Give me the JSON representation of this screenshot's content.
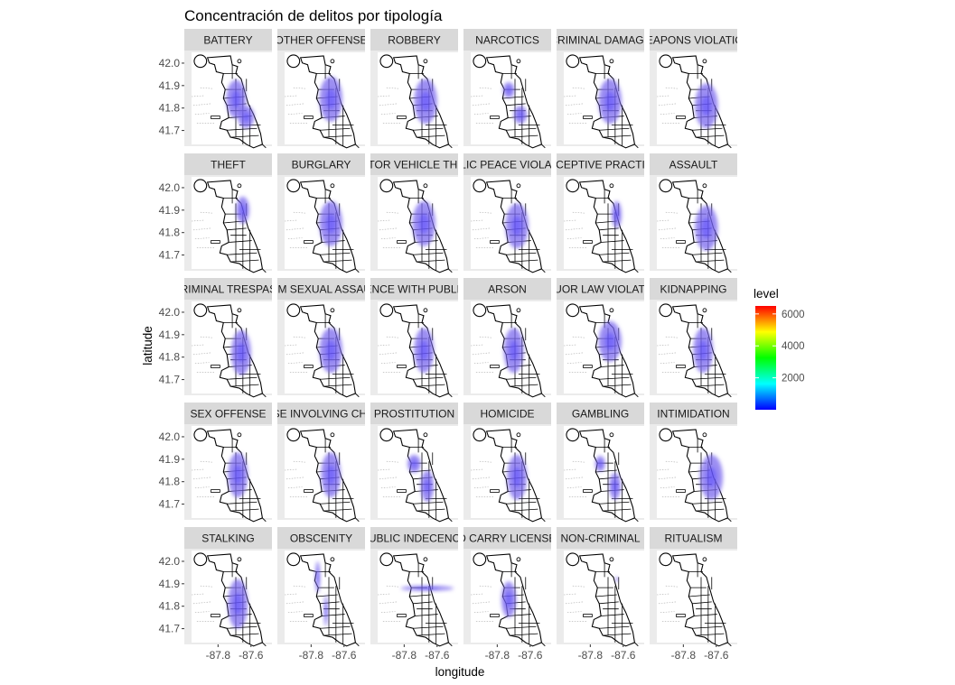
{
  "chart_data": {
    "type": "heatmap",
    "title": "Concentración de delitos por tipología",
    "xlabel": "longitude",
    "ylabel": "latitude",
    "x_ticks": [
      "-87.8",
      "-87.6"
    ],
    "y_ticks": [
      "42.0",
      "41.9",
      "41.8",
      "41.7"
    ],
    "xlim": [
      -87.95,
      -87.5
    ],
    "ylim": [
      41.63,
      42.04
    ],
    "facets": [
      {
        "label": "BATTERY",
        "blobs": [
          {
            "lon": -87.69,
            "lat": 41.84,
            "rx": 0.06,
            "ry": 0.085
          },
          {
            "lon": -87.63,
            "lat": 41.76,
            "rx": 0.05,
            "ry": 0.05
          }
        ]
      },
      {
        "label": "OTHER OFFENSE",
        "blobs": [
          {
            "lon": -87.68,
            "lat": 41.84,
            "rx": 0.07,
            "ry": 0.1
          }
        ]
      },
      {
        "label": "ROBBERY",
        "blobs": [
          {
            "lon": -87.67,
            "lat": 41.83,
            "rx": 0.07,
            "ry": 0.1
          }
        ]
      },
      {
        "label": "NARCOTICS",
        "blobs": [
          {
            "lon": -87.73,
            "lat": 41.88,
            "rx": 0.035,
            "ry": 0.035
          },
          {
            "lon": -87.66,
            "lat": 41.77,
            "rx": 0.04,
            "ry": 0.04
          }
        ]
      },
      {
        "label": "CRIMINAL DAMAGE",
        "blobs": [
          {
            "lon": -87.68,
            "lat": 41.83,
            "rx": 0.07,
            "ry": 0.1
          }
        ]
      },
      {
        "label": "WEAPONS VIOLATION",
        "blobs": [
          {
            "lon": -87.66,
            "lat": 41.81,
            "rx": 0.07,
            "ry": 0.1
          }
        ]
      },
      {
        "label": "THEFT",
        "blobs": [
          {
            "lon": -87.65,
            "lat": 41.9,
            "rx": 0.04,
            "ry": 0.06
          }
        ]
      },
      {
        "label": "BURGLARY",
        "blobs": [
          {
            "lon": -87.68,
            "lat": 41.84,
            "rx": 0.07,
            "ry": 0.1
          }
        ]
      },
      {
        "label": "MOTOR VEHICLE THEFT",
        "blobs": [
          {
            "lon": -87.68,
            "lat": 41.84,
            "rx": 0.07,
            "ry": 0.1
          }
        ]
      },
      {
        "label": "PUBLIC PEACE VIOLATION",
        "blobs": [
          {
            "lon": -87.68,
            "lat": 41.83,
            "rx": 0.07,
            "ry": 0.1
          }
        ]
      },
      {
        "label": "DECEPTIVE PRACTICE",
        "blobs": [
          {
            "lon": -87.64,
            "lat": 41.88,
            "rx": 0.03,
            "ry": 0.06
          }
        ]
      },
      {
        "label": "ASSAULT",
        "blobs": [
          {
            "lon": -87.66,
            "lat": 41.82,
            "rx": 0.07,
            "ry": 0.1
          }
        ]
      },
      {
        "label": "CRIMINAL TRESPASS",
        "blobs": [
          {
            "lon": -87.66,
            "lat": 41.82,
            "rx": 0.06,
            "ry": 0.1
          }
        ]
      },
      {
        "label": "CRIM SEXUAL ASSAULT",
        "blobs": [
          {
            "lon": -87.68,
            "lat": 41.83,
            "rx": 0.07,
            "ry": 0.1
          }
        ]
      },
      {
        "label": "INTERFERENCE WITH PUBLIC OFFICER",
        "blobs": [
          {
            "lon": -87.68,
            "lat": 41.83,
            "rx": 0.06,
            "ry": 0.1
          }
        ]
      },
      {
        "label": "ARSON",
        "blobs": [
          {
            "lon": -87.7,
            "lat": 41.83,
            "rx": 0.06,
            "ry": 0.1
          }
        ]
      },
      {
        "label": "LIQUOR LAW VIOLATION",
        "blobs": [
          {
            "lon": -87.68,
            "lat": 41.87,
            "rx": 0.07,
            "ry": 0.09
          }
        ]
      },
      {
        "label": "KIDNAPPING",
        "blobs": [
          {
            "lon": -87.68,
            "lat": 41.83,
            "rx": 0.06,
            "ry": 0.1
          }
        ]
      },
      {
        "label": "SEX OFFENSE",
        "blobs": [
          {
            "lon": -87.68,
            "lat": 41.83,
            "rx": 0.06,
            "ry": 0.1
          }
        ]
      },
      {
        "label": "OFFENSE INVOLVING CHILDREN",
        "blobs": [
          {
            "lon": -87.68,
            "lat": 41.83,
            "rx": 0.06,
            "ry": 0.1
          }
        ]
      },
      {
        "label": "PROSTITUTION",
        "blobs": [
          {
            "lon": -87.74,
            "lat": 41.88,
            "rx": 0.04,
            "ry": 0.04
          },
          {
            "lon": -87.66,
            "lat": 41.78,
            "rx": 0.04,
            "ry": 0.07
          }
        ]
      },
      {
        "label": "HOMICIDE",
        "blobs": [
          {
            "lon": -87.68,
            "lat": 41.82,
            "rx": 0.06,
            "ry": 0.1
          }
        ]
      },
      {
        "label": "GAMBLING",
        "blobs": [
          {
            "lon": -87.74,
            "lat": 41.88,
            "rx": 0.03,
            "ry": 0.035
          },
          {
            "lon": -87.65,
            "lat": 41.78,
            "rx": 0.035,
            "ry": 0.06
          }
        ]
      },
      {
        "label": "INTIMIDATION",
        "blobs": [
          {
            "lon": -87.63,
            "lat": 41.82,
            "rx": 0.07,
            "ry": 0.1
          }
        ]
      },
      {
        "label": "STALKING",
        "blobs": [
          {
            "lon": -87.68,
            "lat": 41.81,
            "rx": 0.06,
            "ry": 0.11
          }
        ]
      },
      {
        "label": "OBSCENITY",
        "blobs": [
          {
            "lon": -87.76,
            "lat": 41.93,
            "rx": 0.015,
            "ry": 0.07
          },
          {
            "lon": -87.71,
            "lat": 41.78,
            "rx": 0.012,
            "ry": 0.07
          }
        ]
      },
      {
        "label": "PUBLIC INDECENCY",
        "blobs": [
          {
            "lon": -87.66,
            "lat": 41.88,
            "rx": 0.16,
            "ry": 0.012
          }
        ]
      },
      {
        "label": "CONCEALED CARRY LICENSE VIOLATION",
        "blobs": [
          {
            "lon": -87.73,
            "lat": 41.83,
            "rx": 0.045,
            "ry": 0.08
          }
        ]
      },
      {
        "label": "NON-CRIMINAL",
        "blobs": [
          {
            "lon": -87.64,
            "lat": 41.92,
            "rx": 0.008,
            "ry": 0.012
          }
        ]
      },
      {
        "label": "RITUALISM",
        "blobs": []
      }
    ],
    "legend": {
      "title": "level",
      "ticks": [
        "2000",
        "4000",
        "6000"
      ],
      "range": [
        0,
        6500
      ],
      "colors": [
        "#0000ff",
        "#00ffff",
        "#00ff00",
        "#ffff00",
        "#ff0000"
      ]
    },
    "fill_color": "#7b68ee",
    "panel_background": "#ebebeb",
    "strip_background": "#d9d9d9",
    "grid": false
  }
}
